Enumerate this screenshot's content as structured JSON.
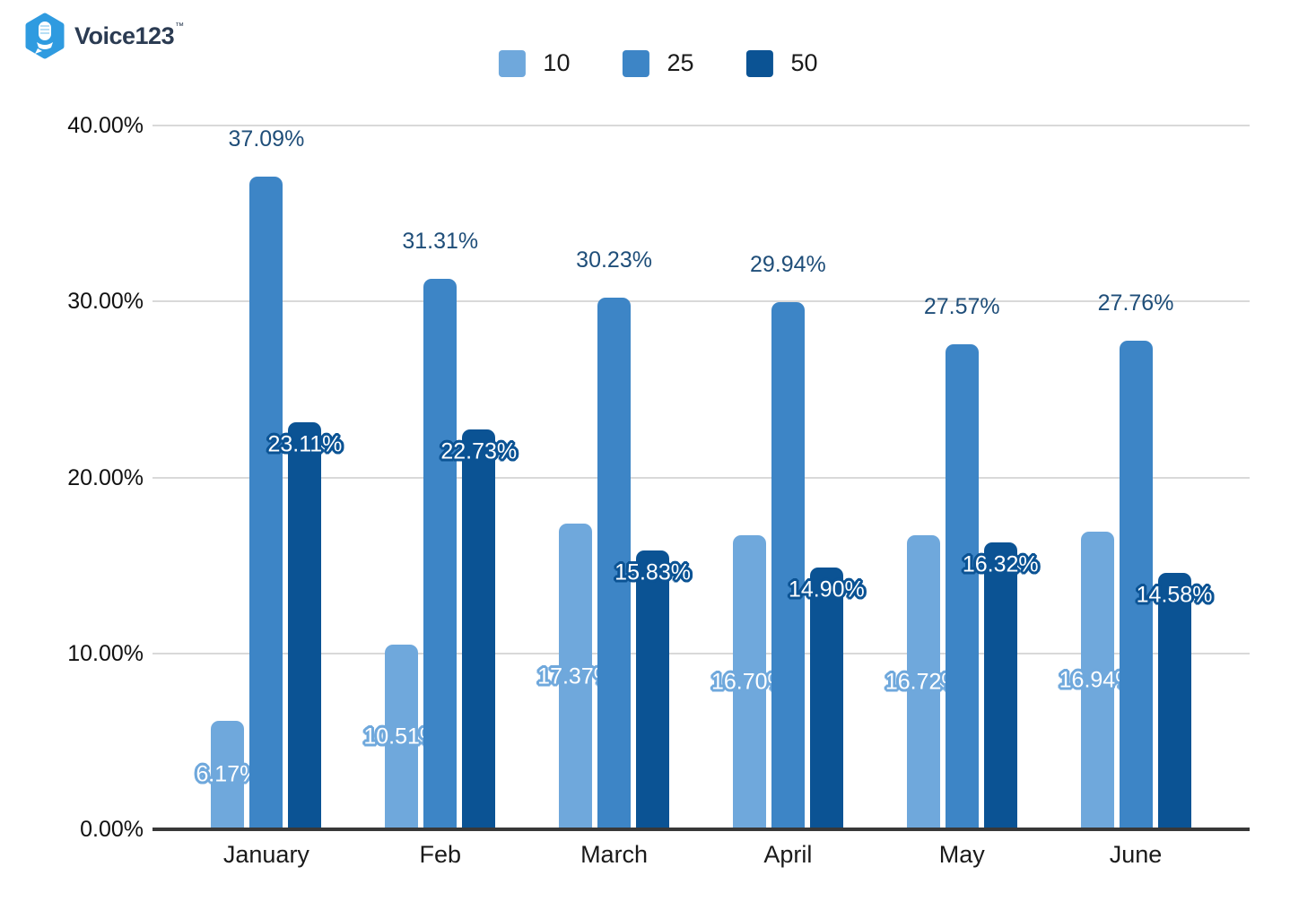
{
  "logo": {
    "brand": "Voice123",
    "tm": "™",
    "hex_color": "#2f9be0",
    "text_color": "#2b3b52"
  },
  "chart_data": {
    "type": "bar",
    "title": "",
    "categories": [
      "January",
      "Feb",
      "March",
      "April",
      "May",
      "June"
    ],
    "series": [
      {
        "name": "10",
        "color": "#6fa8dc",
        "label_style": "outlined-center",
        "values": [
          6.17,
          10.51,
          17.37,
          16.7,
          16.72,
          16.94
        ],
        "labels": [
          "6.17%",
          "10.51%",
          "17.37%",
          "16.70%",
          "16.72%",
          "16.94%"
        ]
      },
      {
        "name": "25",
        "color": "#3d85c6",
        "label_style": "navy-above",
        "values": [
          37.09,
          31.31,
          30.23,
          29.94,
          27.57,
          27.76
        ],
        "labels": [
          "37.09%",
          "31.31%",
          "30.23%",
          "29.94%",
          "27.57%",
          "27.76%"
        ]
      },
      {
        "name": "50",
        "color": "#0b5394",
        "label_style": "outlined-neartop",
        "values": [
          23.11,
          22.73,
          15.83,
          14.9,
          16.32,
          14.58
        ],
        "labels": [
          "23.11%",
          "22.73%",
          "15.83%",
          "14.90%",
          "16.32%",
          "14.58%"
        ]
      }
    ],
    "ylim": [
      0,
      40
    ],
    "yticks": [
      {
        "value": 0,
        "label": "0.00%"
      },
      {
        "value": 10,
        "label": "10.00%"
      },
      {
        "value": 20,
        "label": "20.00%"
      },
      {
        "value": 30,
        "label": "30.00%"
      },
      {
        "value": 40,
        "label": "40.00%"
      }
    ],
    "grid": true,
    "legend_position": "top",
    "colors": {
      "data_label_navy": "#1f4e79",
      "gridline": "#d9d9d9",
      "axis": "#383838"
    }
  }
}
